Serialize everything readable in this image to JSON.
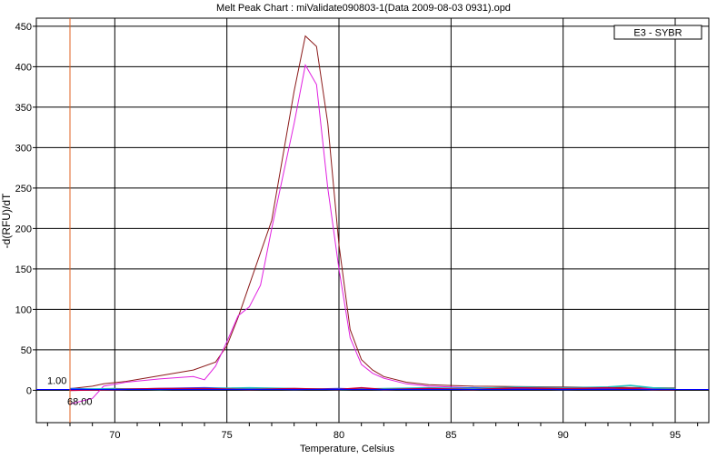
{
  "chart_data": {
    "type": "line",
    "title": "Melt Peak Chart : miValidate090803-1(Data 2009-08-03 0931).opd",
    "xlabel": "Temperature, Celsius",
    "ylabel": "-d(RFU)/dT",
    "xlim": [
      66.5,
      96.5
    ],
    "ylim": [
      -40,
      460
    ],
    "x_ticks": [
      70,
      75,
      80,
      85,
      90,
      95
    ],
    "y_ticks": [
      0,
      50,
      100,
      150,
      200,
      250,
      300,
      350,
      400,
      450
    ],
    "grid": true,
    "legend": {
      "placement": "top-right",
      "entries": [
        "E3 - SYBR"
      ]
    },
    "threshold": {
      "value": 1.0,
      "label": "1.00"
    },
    "marker": {
      "x": 68.0,
      "label": "68.00"
    },
    "series": [
      {
        "color": "#8b1a1a",
        "x": [
          68.0,
          69.0,
          69.5,
          70.5,
          72.0,
          73.5,
          74.5,
          75.0,
          75.5,
          76.0,
          77.0,
          78.0,
          78.5,
          79.0,
          79.5,
          80.0,
          80.5,
          81.0,
          81.5,
          82.0,
          83.0,
          84.0,
          85.0,
          86.0,
          90.0,
          95.0
        ],
        "y": [
          2,
          5,
          8,
          11,
          18,
          25,
          35,
          55,
          90,
          130,
          210,
          370,
          438,
          425,
          330,
          180,
          75,
          38,
          25,
          17,
          10,
          7,
          6,
          5,
          4,
          3
        ]
      },
      {
        "color": "#e020e0",
        "x": [
          68.0,
          69.0,
          69.5,
          70.5,
          72.0,
          73.5,
          74.0,
          74.5,
          75.0,
          75.5,
          76.0,
          76.5,
          77.0,
          78.0,
          78.5,
          79.0,
          79.5,
          80.0,
          80.5,
          81.0,
          81.5,
          82.0,
          83.0,
          84.0,
          85.0,
          86.0,
          90.0,
          95.0
        ],
        "y": [
          -17,
          -10,
          5,
          10,
          14,
          17,
          13,
          30,
          60,
          92,
          103,
          130,
          200,
          330,
          402,
          378,
          250,
          150,
          65,
          32,
          21,
          15,
          8,
          5,
          4,
          3,
          3,
          2
        ]
      },
      {
        "color": "#1e3cff",
        "x": [
          68,
          70,
          72,
          74,
          76,
          78,
          80,
          82,
          84,
          86,
          88,
          90,
          92,
          94,
          95
        ],
        "y": [
          2,
          1,
          2,
          3,
          2,
          1,
          2,
          1,
          2,
          3,
          2,
          1,
          2,
          1,
          2
        ]
      },
      {
        "color": "#20c0c0",
        "x": [
          68,
          70,
          72,
          74,
          76,
          78,
          80,
          82,
          84,
          86,
          88,
          90,
          92,
          93,
          94,
          95
        ],
        "y": [
          1,
          2,
          1,
          2,
          3,
          2,
          1,
          2,
          3,
          2,
          4,
          3,
          4,
          6,
          3,
          2
        ]
      },
      {
        "color": "#c00040",
        "x": [
          68,
          70,
          72,
          74,
          76,
          78,
          80,
          81,
          82,
          84,
          86,
          88,
          90,
          92,
          94,
          95
        ],
        "y": [
          0,
          1,
          2,
          2,
          1,
          2,
          1,
          3,
          1,
          2,
          1,
          3,
          2,
          3,
          1,
          1
        ]
      }
    ]
  }
}
